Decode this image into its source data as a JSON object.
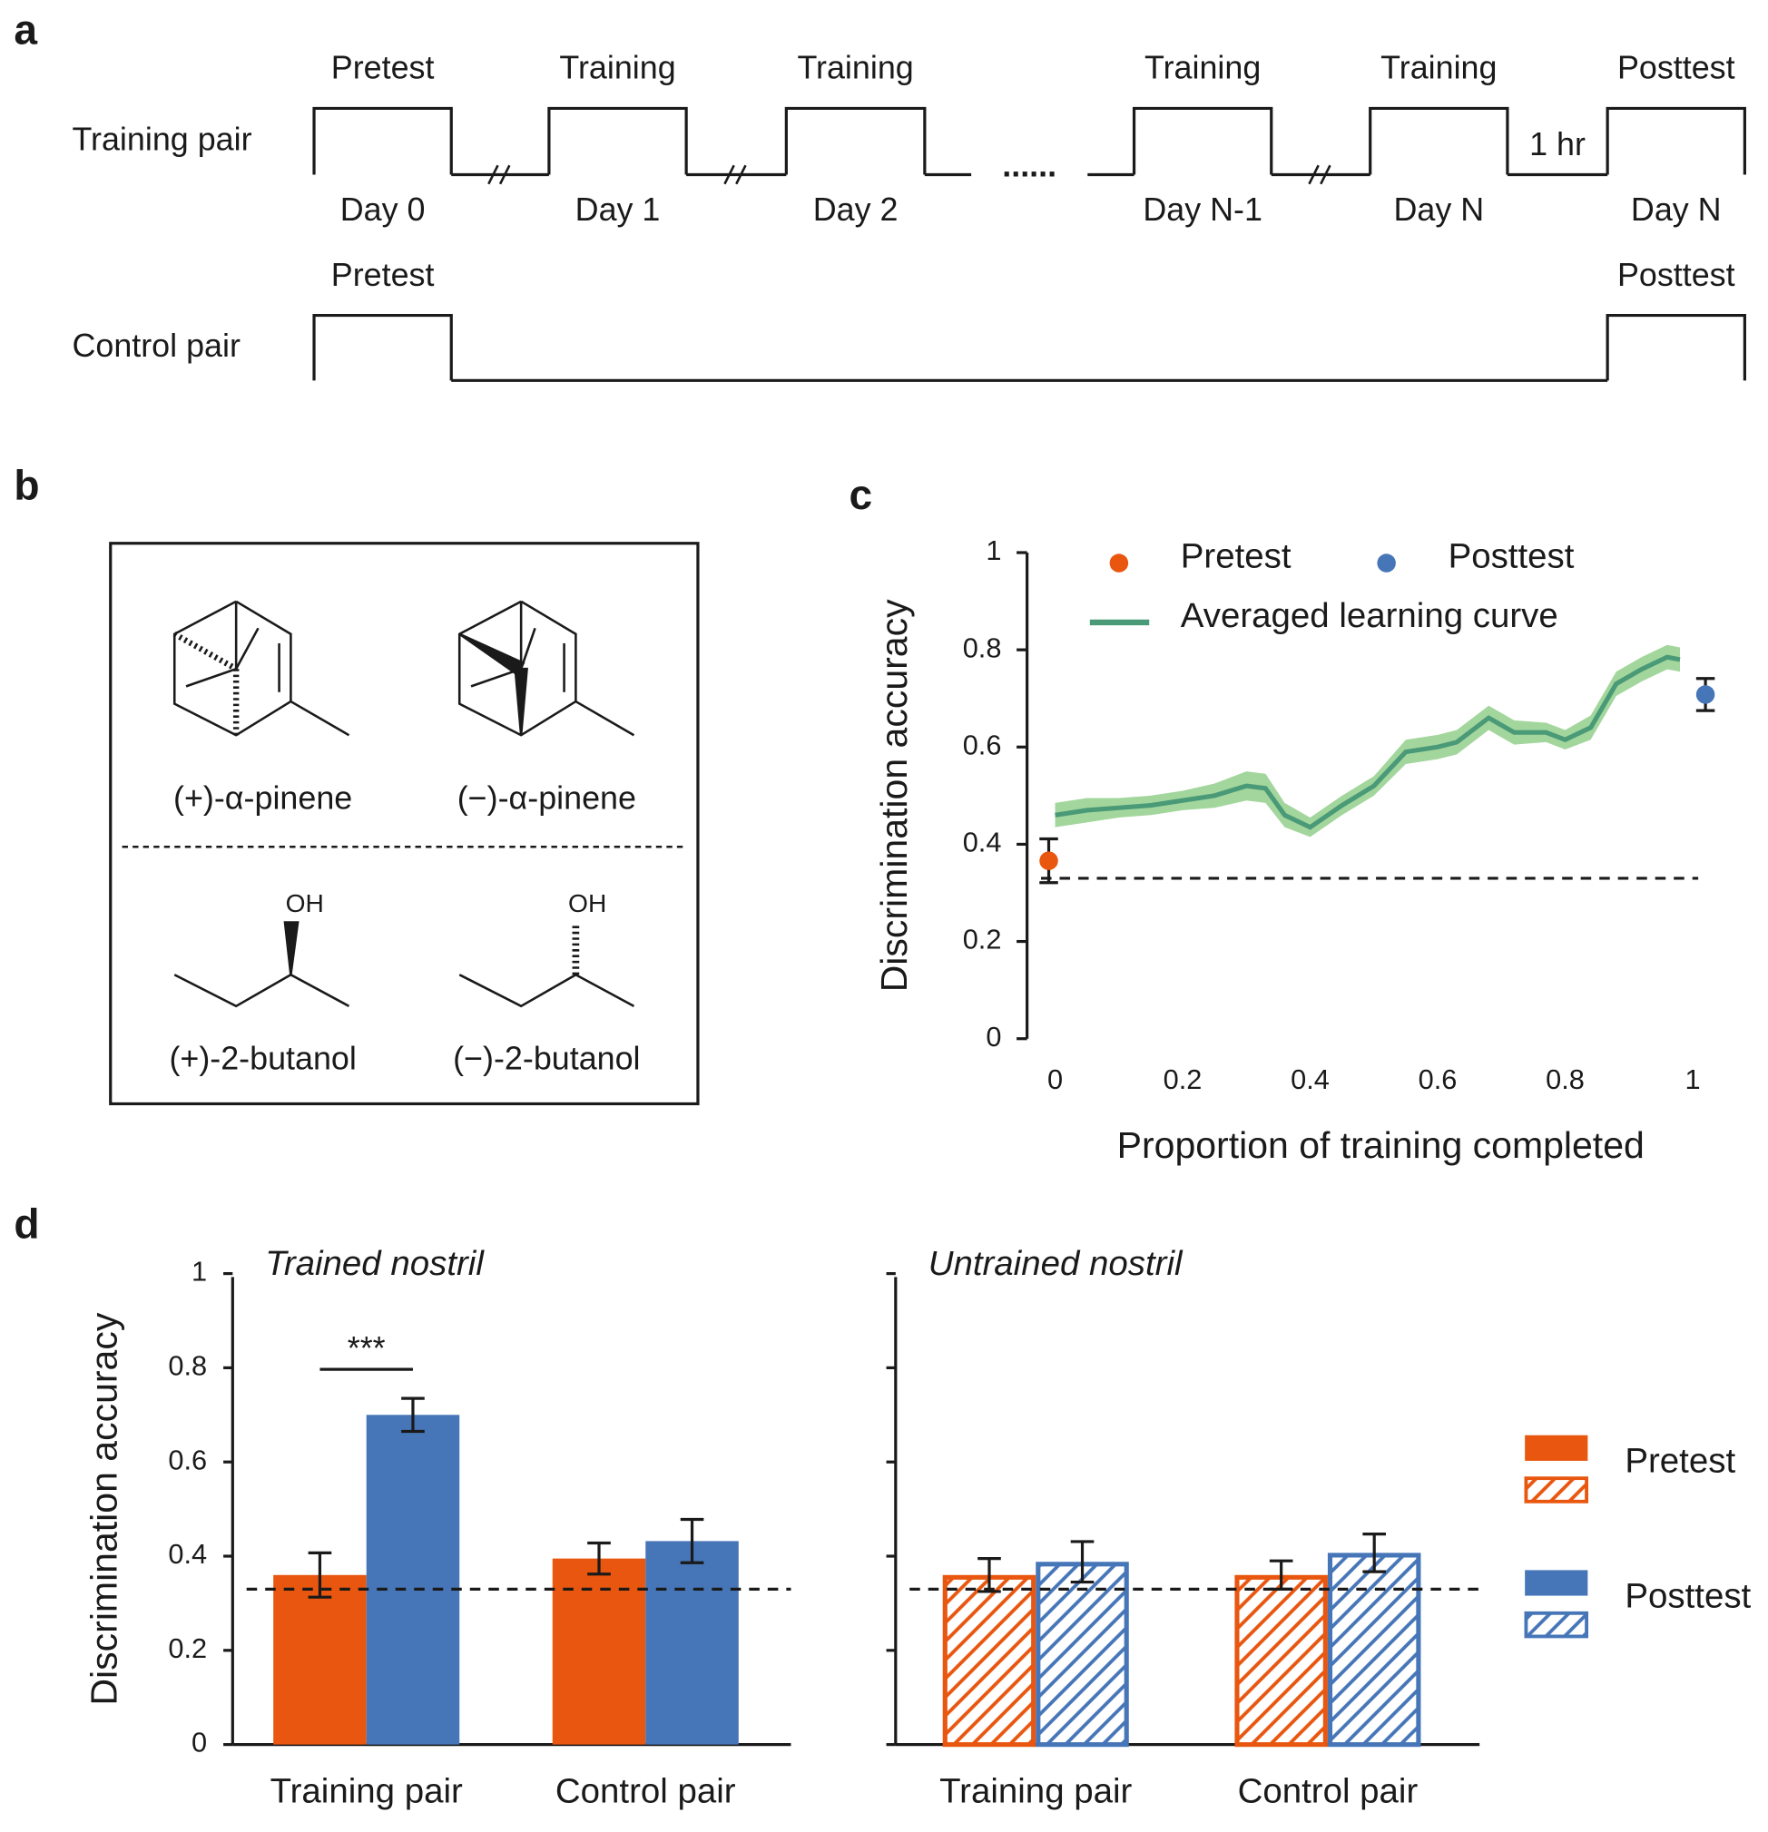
{
  "panel_labels": [
    "a",
    "b",
    "c",
    "d"
  ],
  "timeline": {
    "rows": [
      {
        "label": "Training pair",
        "sessions": [
          {
            "top": "Pretest",
            "bottom": "Day 0"
          },
          {
            "top": "Training",
            "bottom": "Day 1"
          },
          {
            "top": "Training",
            "bottom": "Day 2"
          },
          {
            "top": "Training",
            "bottom": "Day N-1"
          },
          {
            "top": "Training",
            "bottom": "Day N"
          },
          {
            "top": "Posttest",
            "bottom": "Day N"
          }
        ],
        "ellipsis": "......",
        "gap_label": "1 hr"
      },
      {
        "label": "Control pair",
        "sessions": [
          {
            "top": "Pretest"
          },
          {
            "top": "Posttest"
          }
        ]
      }
    ]
  },
  "molecules": {
    "names": [
      "(+)-α-pinene",
      "(−)-α-pinene",
      "(+)-2-butanol",
      "(−)-2-butanol"
    ],
    "hydroxyl_label": "OH"
  },
  "chart_data": [
    {
      "type": "line",
      "y_label": "Discrimination accuracy",
      "x_label": "Proportion of training completed",
      "xlim": [
        -0.044,
        1.036
      ],
      "xticks": [
        0,
        0.2,
        0.4,
        0.6,
        0.8,
        1
      ],
      "ylim": [
        0,
        1
      ],
      "yticks": [
        0,
        0.2,
        0.4,
        0.6,
        0.8,
        1
      ],
      "reference_line": 0.33,
      "series": [
        {
          "name": "Pretest",
          "type": "point",
          "color": "#e8560f",
          "x": [
            -0.01
          ],
          "values": [
            0.366
          ],
          "errors": [
            0.045
          ]
        },
        {
          "name": "Posttest",
          "type": "point",
          "color": "#4676b8",
          "x": [
            1.02
          ],
          "values": [
            0.708
          ],
          "errors": [
            0.033
          ]
        },
        {
          "name": "Averaged learning curve",
          "type": "line",
          "color": "#4a9a78",
          "band_color": "#a3d69c",
          "x": [
            0,
            0.05,
            0.1,
            0.15,
            0.2,
            0.25,
            0.3,
            0.33,
            0.36,
            0.4,
            0.45,
            0.5,
            0.55,
            0.6,
            0.63,
            0.68,
            0.72,
            0.77,
            0.8,
            0.84,
            0.88,
            0.92,
            0.96,
            0.98
          ],
          "values": [
            0.46,
            0.47,
            0.475,
            0.48,
            0.49,
            0.5,
            0.52,
            0.515,
            0.46,
            0.435,
            0.48,
            0.52,
            0.59,
            0.6,
            0.61,
            0.66,
            0.63,
            0.63,
            0.615,
            0.64,
            0.73,
            0.76,
            0.785,
            0.78
          ],
          "errors": [
            0.025,
            0.025,
            0.02,
            0.02,
            0.02,
            0.025,
            0.03,
            0.03,
            0.025,
            0.02,
            0.02,
            0.02,
            0.025,
            0.025,
            0.025,
            0.025,
            0.025,
            0.02,
            0.02,
            0.025,
            0.025,
            0.025,
            0.025,
            0.025
          ]
        }
      ]
    },
    {
      "type": "bar",
      "title": "Trained nostril",
      "y_label": "Discrimination accuracy",
      "categories": [
        "Training pair",
        "Control pair"
      ],
      "ylim": [
        0,
        1
      ],
      "yticks": [
        0,
        0.2,
        0.4,
        0.6,
        0.8,
        1
      ],
      "reference_line": 0.33,
      "significance_label": "***",
      "legend": true,
      "series": [
        {
          "name": "Pretest",
          "color": "#e8560f",
          "values": [
            0.36,
            0.395
          ],
          "errors": [
            0.047,
            0.033
          ]
        },
        {
          "name": "Posttest",
          "color": "#4676b8",
          "values": [
            0.7,
            0.432
          ],
          "errors": [
            0.035,
            0.046
          ]
        }
      ]
    },
    {
      "type": "bar",
      "title": "Untrained nostril",
      "categories": [
        "Training pair",
        "Control pair"
      ],
      "ylim": [
        0,
        1
      ],
      "yticks": [
        0,
        0.2,
        0.4,
        0.6,
        0.8,
        1
      ],
      "tick_labels": false,
      "reference_line": 0.33,
      "series": [
        {
          "color": "#e8560f",
          "hatched": true,
          "values": [
            0.36,
            0.36
          ],
          "errors": [
            0.035,
            0.03
          ]
        },
        {
          "color": "#4676b8",
          "hatched": true,
          "values": [
            0.388,
            0.407
          ],
          "errors": [
            0.043,
            0.04
          ]
        }
      ]
    }
  ]
}
